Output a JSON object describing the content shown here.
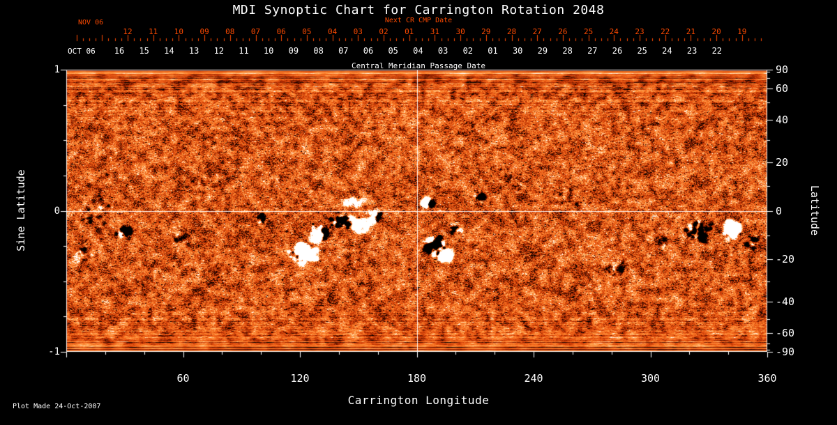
{
  "title": "MDI Synoptic Chart for Carrington Rotation 2048",
  "top_axis": {
    "next_cr_label": "Next CR CMP Date",
    "nov_label": "NOV 06",
    "nov_dates": [
      "12",
      "11",
      "10",
      "09",
      "08",
      "07",
      "06",
      "05",
      "04",
      "03",
      "02",
      "01",
      "31",
      "30",
      "29",
      "28",
      "27",
      "26",
      "25",
      "24",
      "23",
      "22",
      "21",
      "20",
      "19"
    ],
    "oct_label": "OCT 06",
    "oct_dates": [
      "16",
      "15",
      "14",
      "13",
      "12",
      "11",
      "10",
      "09",
      "08",
      "07",
      "06",
      "05",
      "04",
      "03",
      "02",
      "01",
      "30",
      "29",
      "28",
      "27",
      "26",
      "25",
      "24",
      "23",
      "22"
    ],
    "cmp_label": "Central Meridian Passage Date"
  },
  "axes": {
    "left_label": "Sine Latitude",
    "left_ticks": [
      "1",
      "0",
      "-1"
    ],
    "right_label": "Latitude",
    "right_ticks": [
      "90",
      "60",
      "40",
      "20",
      "0",
      "-20",
      "-40",
      "-60",
      "-90"
    ],
    "bottom_label": "Carrington Longitude",
    "bottom_ticks": [
      "60",
      "120",
      "180",
      "240",
      "300",
      "360"
    ]
  },
  "footer": {
    "plot_made": "Plot Made 24-Oct-2007"
  },
  "colors": {
    "background": "#000000",
    "text": "#ffffff",
    "accent_orange": "#ff4a00"
  },
  "chart_data": {
    "type": "heatmap",
    "title": "MDI Synoptic Chart for Carrington Rotation 2048",
    "xlabel": "Carrington Longitude",
    "ylabel_left": "Sine Latitude",
    "ylabel_right": "Latitude",
    "x_range_deg": [
      0,
      360
    ],
    "y_range_sine_latitude": [
      -1,
      1
    ],
    "bottom_tick_values": [
      60,
      120,
      180,
      240,
      300,
      360
    ],
    "left_tick_values": [
      1,
      0,
      -1
    ],
    "right_tick_values": [
      90,
      60,
      40,
      20,
      0,
      -20,
      -40,
      -60,
      -90
    ],
    "crosshair": {
      "longitude_deg": 180,
      "sine_latitude": 0
    },
    "colormap_description": "Solar magnetogram synoptic map: black = negative magnetic polarity, orange mottle = quiet Sun, white = positive polarity; horizontal streaking near poles",
    "palette": [
      [
        0.0,
        "#000000"
      ],
      [
        0.08,
        "#1c0300"
      ],
      [
        0.18,
        "#541000"
      ],
      [
        0.3,
        "#992200"
      ],
      [
        0.4,
        "#c83a06"
      ],
      [
        0.5,
        "#e65312"
      ],
      [
        0.6,
        "#f56d1f"
      ],
      [
        0.7,
        "#fc8732"
      ],
      [
        0.78,
        "#ffa04e"
      ],
      [
        0.86,
        "#ffbf7e"
      ],
      [
        0.93,
        "#ffe0b8"
      ],
      [
        1.0,
        "#ffffff"
      ]
    ],
    "active_regions": [
      {
        "lon": 16,
        "slat": 0.05,
        "dlon": 14,
        "dslat": 0.3,
        "pol": "neg",
        "amp": 0.5
      },
      {
        "lon": 30,
        "slat": -0.15,
        "dlon": 5,
        "dslat": 0.05,
        "pol": "neg",
        "amp": 0.85
      },
      {
        "lon": 8,
        "slat": -0.3,
        "dlon": 6,
        "dslat": 0.1,
        "pol": "neg",
        "amp": 0.4
      },
      {
        "lon": 58,
        "slat": -0.18,
        "dlon": 8,
        "dslat": 0.08,
        "pol": "neg",
        "amp": 0.35
      },
      {
        "lon": 75,
        "slat": 0.22,
        "dlon": 14,
        "dslat": 0.14,
        "pol": "neg",
        "amp": 0.3
      },
      {
        "lon": 100,
        "slat": -0.06,
        "dlon": 7,
        "dslat": 0.07,
        "pol": "neg",
        "amp": 0.4
      },
      {
        "lon": 122,
        "slat": -0.3,
        "dlon": 9,
        "dslat": 0.09,
        "pol": "pos",
        "amp": 1.1
      },
      {
        "lon": 131,
        "slat": -0.16,
        "dlon": 8,
        "dslat": 0.08,
        "pol": "bipolar",
        "amp": 0.9
      },
      {
        "lon": 141,
        "slat": -0.07,
        "dlon": 7,
        "dslat": 0.07,
        "pol": "neg",
        "amp": 0.9
      },
      {
        "lon": 147,
        "slat": 0.06,
        "dlon": 10,
        "dslat": 0.05,
        "pol": "pos",
        "amp": 0.4
      },
      {
        "lon": 150,
        "slat": -0.1,
        "dlon": 7,
        "dslat": 0.07,
        "pol": "pos",
        "amp": 0.85
      },
      {
        "lon": 159,
        "slat": -0.04,
        "dlon": 6,
        "dslat": 0.06,
        "pol": "bipolar",
        "amp": 0.65
      },
      {
        "lon": 186,
        "slat": 0.06,
        "dlon": 3.5,
        "dslat": 0.035,
        "pol": "bipolar",
        "amp": 0.95
      },
      {
        "lon": 189,
        "slat": -0.24,
        "dlon": 7,
        "dslat": 0.09,
        "pol": "neg",
        "amp": 1.15
      },
      {
        "lon": 194,
        "slat": -0.32,
        "dlon": 4.5,
        "dslat": 0.05,
        "pol": "pos",
        "amp": 0.95
      },
      {
        "lon": 200,
        "slat": -0.12,
        "dlon": 5,
        "dslat": 0.05,
        "pol": "neg",
        "amp": 0.5
      },
      {
        "lon": 213,
        "slat": 0.1,
        "dlon": 4,
        "dslat": 0.04,
        "pol": "neg",
        "amp": 0.55
      },
      {
        "lon": 230,
        "slat": 0.24,
        "dlon": 12,
        "dslat": 0.12,
        "pol": "neg",
        "amp": 0.35
      },
      {
        "lon": 257,
        "slat": 0.12,
        "dlon": 10,
        "dslat": 0.1,
        "pol": "neg",
        "amp": 0.3
      },
      {
        "lon": 283,
        "slat": -0.4,
        "dlon": 9,
        "dslat": 0.08,
        "pol": "neg",
        "amp": 0.4
      },
      {
        "lon": 305,
        "slat": -0.2,
        "dlon": 8,
        "dslat": 0.08,
        "pol": "neg",
        "amp": 0.35
      },
      {
        "lon": 325,
        "slat": -0.14,
        "dlon": 9,
        "dslat": 0.1,
        "pol": "neg",
        "amp": 0.85
      },
      {
        "lon": 342,
        "slat": -0.13,
        "dlon": 6,
        "dslat": 0.075,
        "pol": "pos",
        "amp": 1.2
      },
      {
        "lon": 352,
        "slat": -0.22,
        "dlon": 5,
        "dslat": 0.06,
        "pol": "neg",
        "amp": 0.5
      }
    ]
  }
}
